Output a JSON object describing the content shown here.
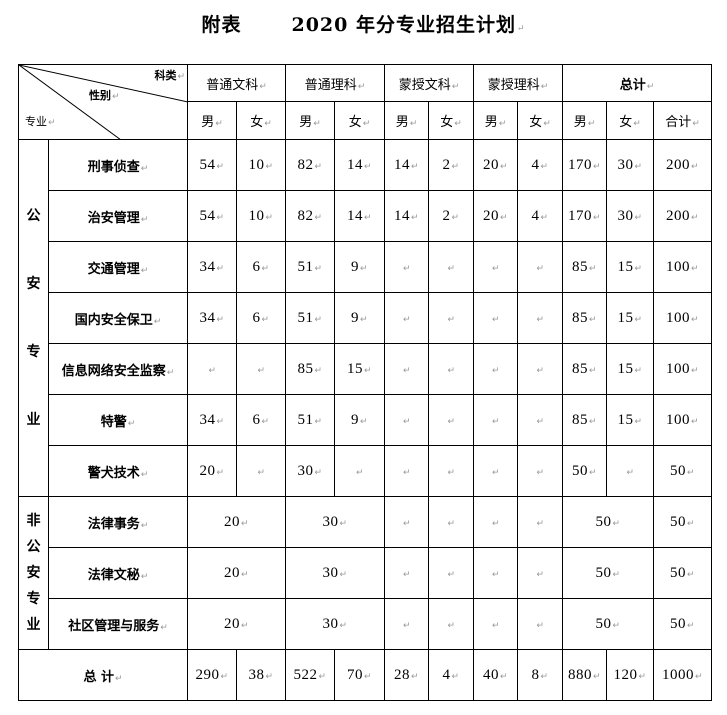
{
  "title": {
    "prefix": "附表",
    "main": "2020 年分专业招生计划"
  },
  "header": {
    "corner": {
      "top": "科类",
      "middle": "性别",
      "bottom": "专业"
    },
    "groups": [
      "普通文科",
      "普通理科",
      "蒙授文科",
      "蒙授理科",
      "总计"
    ],
    "genders": [
      "男",
      "女",
      "男",
      "女",
      "男",
      "女",
      "男",
      "女",
      "男",
      "女",
      "合计"
    ]
  },
  "categories": [
    {
      "label": "公安专业",
      "chars": [
        "公",
        "安",
        "专",
        "业"
      ]
    },
    {
      "label": "非公安专业",
      "chars": [
        "非",
        "公",
        "安",
        "专",
        "业"
      ]
    }
  ],
  "rows": [
    {
      "major": "刑事侦查",
      "values": [
        "54",
        "10",
        "82",
        "14",
        "14",
        "2",
        "20",
        "4",
        "170",
        "30",
        "200"
      ]
    },
    {
      "major": "治安管理",
      "values": [
        "54",
        "10",
        "82",
        "14",
        "14",
        "2",
        "20",
        "4",
        "170",
        "30",
        "200"
      ]
    },
    {
      "major": "交通管理",
      "values": [
        "34",
        "6",
        "51",
        "9",
        "",
        "",
        "",
        "",
        "85",
        "15",
        "100"
      ]
    },
    {
      "major": "国内安全保卫",
      "values": [
        "34",
        "6",
        "51",
        "9",
        "",
        "",
        "",
        "",
        "85",
        "15",
        "100"
      ]
    },
    {
      "major": "信息网络安全监察",
      "values": [
        "",
        "",
        "85",
        "15",
        "",
        "",
        "",
        "",
        "85",
        "15",
        "100"
      ]
    },
    {
      "major": "特警",
      "values": [
        "34",
        "6",
        "51",
        "9",
        "",
        "",
        "",
        "",
        "85",
        "15",
        "100"
      ]
    },
    {
      "major": "警犬技术",
      "values": [
        "20",
        "",
        "30",
        "",
        "",
        "",
        "",
        "",
        "50",
        "",
        "50"
      ]
    }
  ],
  "merged_rows": [
    {
      "major": "法律事务",
      "wenke": "20",
      "like": "30",
      "total_mf": "50",
      "total": "50"
    },
    {
      "major": "法律文秘",
      "wenke": "20",
      "like": "30",
      "total_mf": "50",
      "total": "50"
    },
    {
      "major": "社区管理与服务",
      "wenke": "20",
      "like": "30",
      "total_mf": "50",
      "total": "50"
    }
  ],
  "totals": {
    "label": "总 计",
    "values": [
      "290",
      "38",
      "522",
      "70",
      "28",
      "4",
      "40",
      "8",
      "880",
      "120",
      "1000"
    ]
  }
}
